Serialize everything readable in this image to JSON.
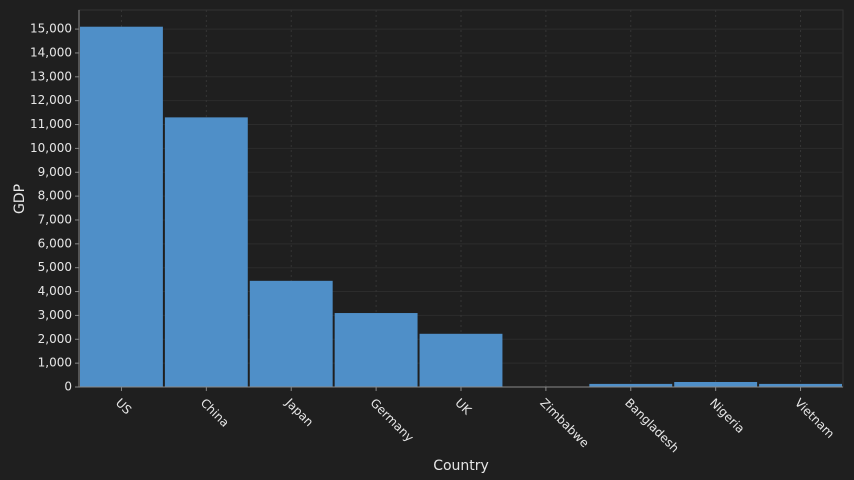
{
  "chart_data": {
    "type": "bar",
    "x_label": "Country",
    "y_label": "GDP",
    "categories": [
      "US",
      "China",
      "Japan",
      "Germany",
      "UK",
      "Zimbabwe",
      "Bangladesh",
      "Nigeria",
      "Vietnam"
    ],
    "values": [
      15100,
      11300,
      4450,
      3100,
      2230,
      10,
      130,
      210,
      130
    ],
    "color": "#4f8fc8",
    "ylim": [
      0,
      15800
    ],
    "yticks": [
      0,
      {
        "value": 1000,
        "label": "1,000"
      },
      {
        "value": 2000,
        "label": "2,000"
      },
      {
        "value": 3000,
        "label": "3,000"
      },
      {
        "value": 4000,
        "label": "4,000"
      },
      {
        "value": 5000,
        "label": "5,000"
      },
      {
        "value": 6000,
        "label": "6,000"
      },
      {
        "value": 7000,
        "label": "7,000"
      },
      {
        "value": 8000,
        "label": "8,000"
      },
      {
        "value": 9000,
        "label": "9,000"
      },
      {
        "value": 10000,
        "label": "10,000"
      },
      {
        "value": 11000,
        "label": "11,000"
      },
      {
        "value": 12000,
        "label": "12,000"
      },
      {
        "value": 13000,
        "label": "13,000"
      },
      {
        "value": 14000,
        "label": "14,000"
      },
      {
        "value": 15000,
        "label": "15,000"
      }
    ],
    "grid": true
  }
}
